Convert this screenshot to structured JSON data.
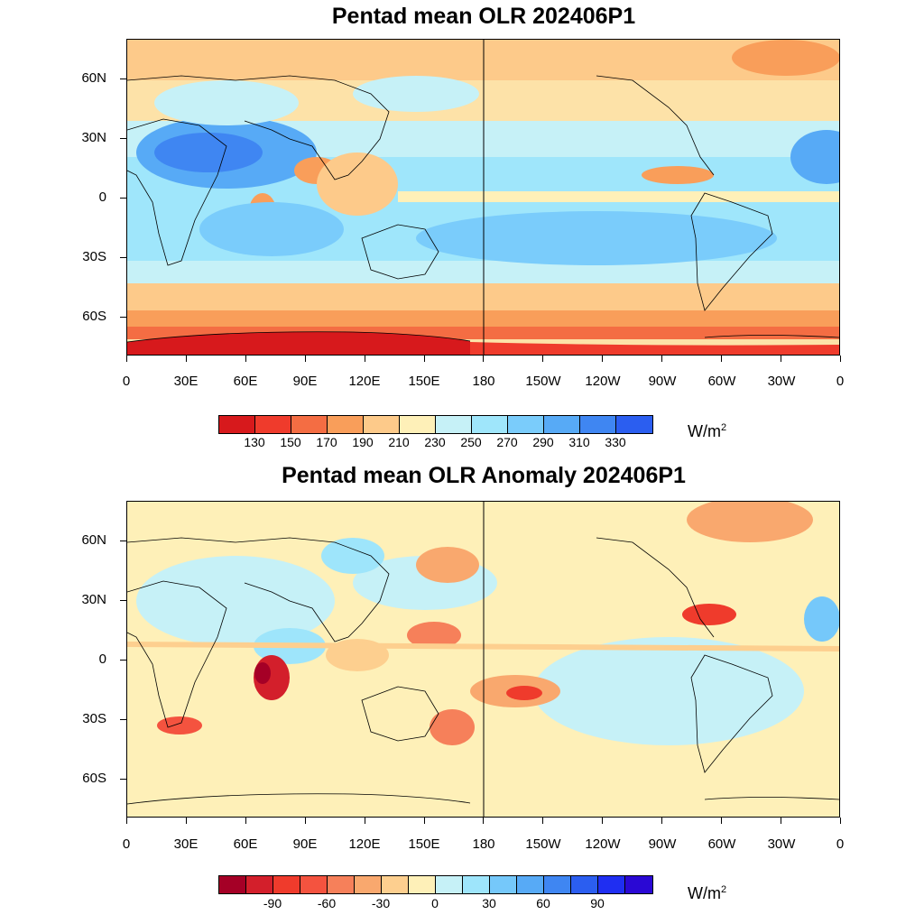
{
  "panels": [
    {
      "title": "Pentad mean OLR 202406P1",
      "field": "mean",
      "lat_labels": [
        "60N",
        "30N",
        "0",
        "30S",
        "60S"
      ],
      "lon_labels": [
        "0",
        "30E",
        "60E",
        "90E",
        "120E",
        "150E",
        "180",
        "150W",
        "120W",
        "90W",
        "60W",
        "30W",
        "0"
      ],
      "colorbar": {
        "colors": [
          "#d7191c",
          "#ef3b2c",
          "#f46d43",
          "#f99e5a",
          "#fdca8a",
          "#fef0b8",
          "#c6f1f7",
          "#9fe6fb",
          "#7accfb",
          "#57aaf6",
          "#3f86f2",
          "#2b5ef0"
        ],
        "labels": [
          "130",
          "150",
          "170",
          "190",
          "210",
          "230",
          "250",
          "270",
          "290",
          "310",
          "330"
        ],
        "units": "W/m",
        "units_sup": "2"
      }
    },
    {
      "title": "Pentad mean OLR Anomaly 202406P1",
      "field": "anomaly",
      "lat_labels": [
        "60N",
        "30N",
        "0",
        "30S",
        "60S"
      ],
      "lon_labels": [
        "0",
        "30E",
        "60E",
        "90E",
        "120E",
        "150E",
        "180",
        "150W",
        "120W",
        "90W",
        "60W",
        "30W",
        "0"
      ],
      "colorbar": {
        "colors": [
          "#a50026",
          "#d31f2b",
          "#ef3b2c",
          "#f4533f",
          "#f6805a",
          "#f9a86e",
          "#fdcf8f",
          "#fef0b8",
          "#c6f1f7",
          "#9ee5fb",
          "#75c8fa",
          "#57aaf6",
          "#3f86f2",
          "#2b5ef0",
          "#1f2ef2",
          "#2a08d4"
        ],
        "labels": [
          "-90",
          "-60",
          "-30",
          "0",
          "30",
          "60",
          "90"
        ],
        "units": "W/m",
        "units_sup": "2"
      }
    }
  ]
}
